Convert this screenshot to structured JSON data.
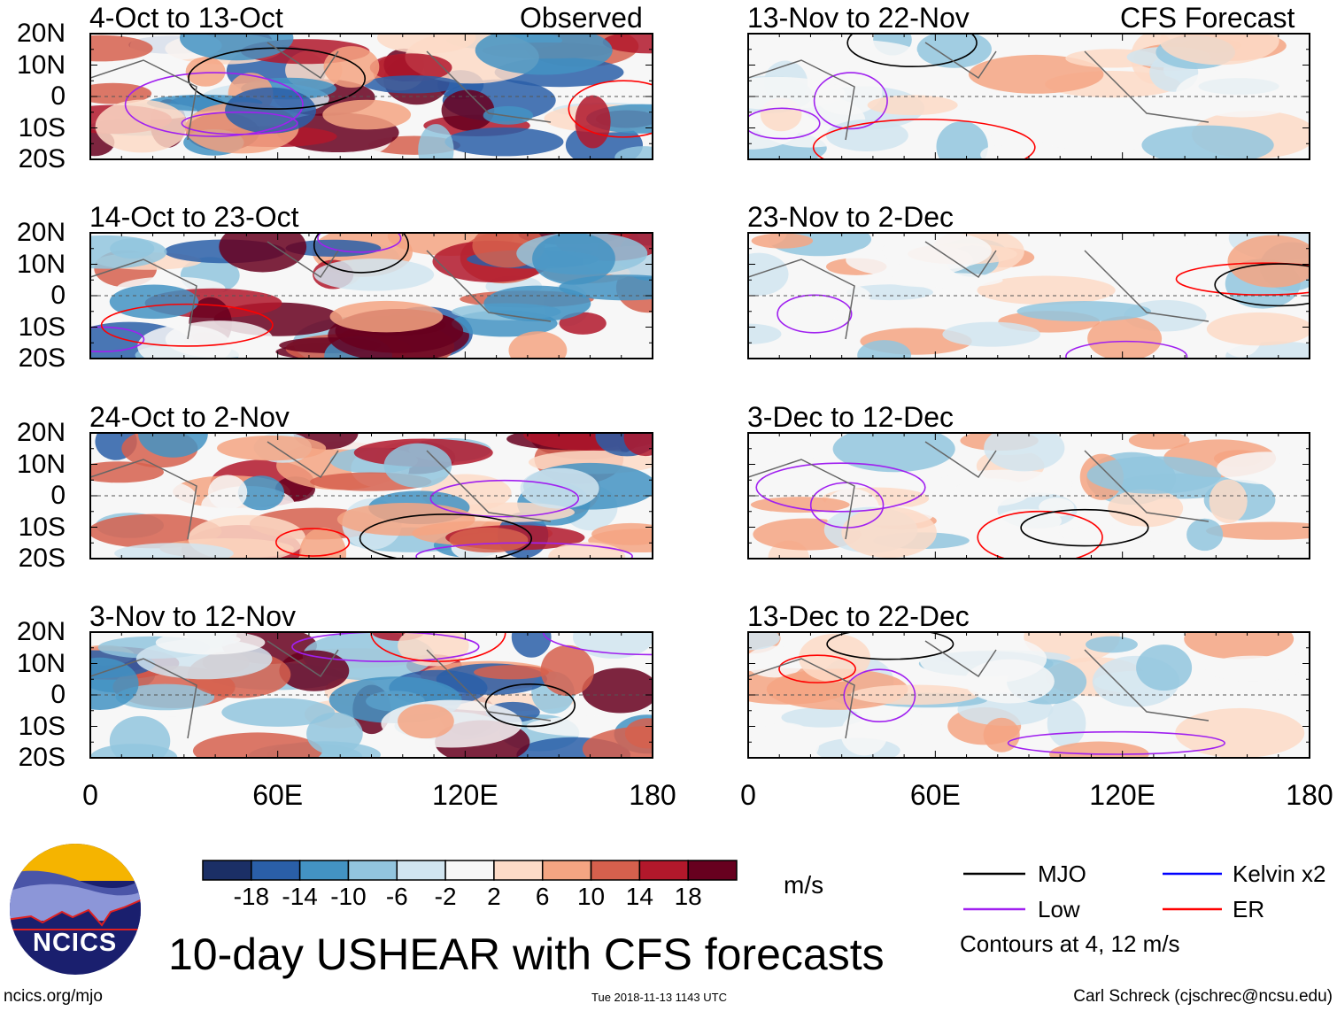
{
  "panels_left_header": "Observed",
  "panels_right_header": "CFS Forecast",
  "panels": [
    {
      "title": "4-Oct to 13-Oct",
      "column": "left",
      "row": 0
    },
    {
      "title": "14-Oct to 23-Oct",
      "column": "left",
      "row": 1
    },
    {
      "title": "24-Oct to 2-Nov",
      "column": "left",
      "row": 2
    },
    {
      "title": "3-Nov to 12-Nov",
      "column": "left",
      "row": 3
    },
    {
      "title": "13-Nov to 22-Nov",
      "column": "right",
      "row": 0
    },
    {
      "title": "23-Nov to 2-Dec",
      "column": "right",
      "row": 1
    },
    {
      "title": "3-Dec to 12-Dec",
      "column": "right",
      "row": 2
    },
    {
      "title": "13-Dec to 22-Dec",
      "column": "right",
      "row": 3
    }
  ],
  "y_ticks": [
    "20N",
    "10N",
    "0",
    "10S",
    "20S"
  ],
  "x_ticks": [
    "0",
    "60E",
    "120E",
    "180"
  ],
  "colorbar": {
    "colors": [
      "#1b2f66",
      "#2a5fa8",
      "#4393c3",
      "#92c5de",
      "#d1e5f0",
      "#f7f7f7",
      "#fddbc7",
      "#f4a582",
      "#d6604d",
      "#b2182b",
      "#67001f"
    ],
    "labels": [
      "-18",
      "-14",
      "-10",
      "-6",
      "-2",
      "2",
      "6",
      "10",
      "14",
      "18"
    ],
    "units": "m/s"
  },
  "title": "10-day USHEAR with CFS forecasts",
  "legend": {
    "items": [
      {
        "label": "MJO",
        "color": "#000000"
      },
      {
        "label": "Low",
        "color": "#a020f0"
      },
      {
        "label": "Kelvin x2",
        "color": "#0000ff"
      },
      {
        "label": "ER",
        "color": "#ff0000"
      }
    ],
    "note": "Contours at 4, 12 m/s"
  },
  "logo_text": "NCICS",
  "footer": {
    "url": "ncics.org/mjo",
    "timestamp": "Tue 2018-11-13 1143 UTC",
    "credit": "Carl Schreck (cjschrec@ncsu.edu)"
  }
}
